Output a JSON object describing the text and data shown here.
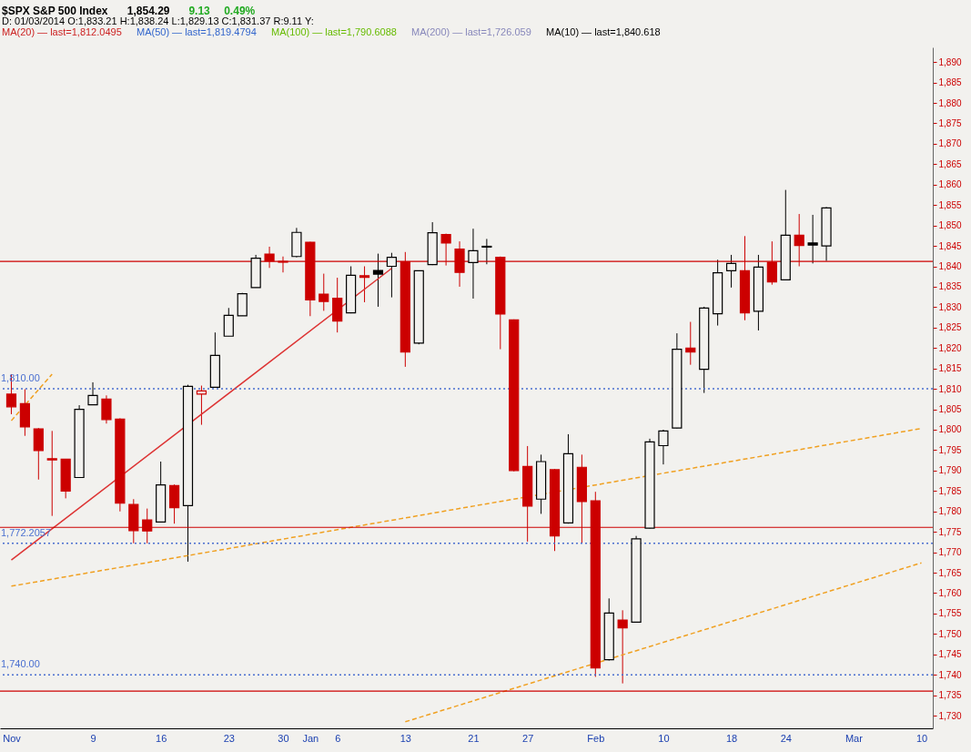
{
  "chart_data": {
    "type": "candlestick",
    "title": "$SPX S&P 500 Index",
    "subtitle": "D: 01/03/2014  O:1,833.21  H:1,838.24  L:1,829.13  C:1,831.37                        R:9.11     Y:",
    "annotations": [
      "1,854.29",
      "9.13",
      "0.49%",
      "MA(20) — last=1,812.0495",
      "MA(50) — last=1,819.4794",
      "MA(100) — last=1,790.6088",
      "MA(200) — last=1,726.059",
      "MA(10) — last=1,840.618"
    ],
    "categories": [
      "Nov",
      null,
      null,
      null,
      null,
      null,
      "9",
      null,
      null,
      null,
      null,
      "16",
      null,
      null,
      null,
      null,
      "23",
      null,
      null,
      null,
      "30",
      null,
      "Jan",
      null,
      "6",
      null,
      null,
      null,
      null,
      "13",
      null,
      null,
      null,
      null,
      "21",
      null,
      null,
      null,
      "27",
      null,
      null,
      null,
      null,
      "Feb",
      null,
      null,
      null,
      null,
      "10",
      null,
      null,
      null,
      null,
      "18",
      null,
      null,
      null,
      "24",
      null,
      null,
      null,
      null,
      "Mar",
      null,
      null,
      null,
      null,
      "10"
    ],
    "ohlc": [
      [
        1808.7,
        1813.6,
        1803.8,
        1805.6
      ],
      [
        1806.4,
        1809.9,
        1798.5,
        1800.7
      ],
      [
        1800.2,
        1800.4,
        1787.8,
        1794.9
      ],
      [
        1792.9,
        1799.7,
        1778.9,
        1792.6
      ],
      [
        1792.8,
        1792.8,
        1783.2,
        1785.0
      ],
      [
        1788.3,
        1806.0,
        1788.3,
        1805.0
      ],
      [
        1806.1,
        1811.6,
        1806.1,
        1808.4
      ],
      [
        1807.5,
        1808.4,
        1801.5,
        1802.5
      ],
      [
        1802.6,
        1802.8,
        1780.0,
        1782.0
      ],
      [
        1781.7,
        1783.0,
        1772.2,
        1775.3
      ],
      [
        1777.9,
        1780.7,
        1772.2,
        1775.2
      ],
      [
        1777.4,
        1792.2,
        1777.4,
        1786.5
      ],
      [
        1786.3,
        1786.6,
        1777.0,
        1780.9
      ],
      [
        1781.4,
        1811.0,
        1767.7,
        1810.6
      ],
      [
        1808.7,
        1810.8,
        1801.2,
        1809.5
      ],
      [
        1810.4,
        1823.8,
        1810.4,
        1818.2
      ],
      [
        1822.9,
        1829.8,
        1822.9,
        1828.0
      ],
      [
        1827.9,
        1833.5,
        1827.9,
        1833.3
      ],
      [
        1834.8,
        1842.8,
        1834.8,
        1842.0
      ],
      [
        1843.0,
        1844.8,
        1839.6,
        1841.3
      ],
      [
        1841.2,
        1842.4,
        1838.5,
        1841.0
      ],
      [
        1842.4,
        1849.4,
        1842.2,
        1848.3
      ],
      [
        1845.9,
        1846.0,
        1827.8,
        1831.8
      ],
      [
        1833.2,
        1838.2,
        1829.1,
        1831.4
      ],
      [
        1832.2,
        1837.2,
        1823.8,
        1826.6
      ],
      [
        1828.6,
        1840.0,
        1828.5,
        1837.8
      ],
      [
        1837.7,
        1840.0,
        1831.2,
        1837.3
      ],
      [
        1839.0,
        1843.1,
        1830.1,
        1838.1
      ],
      [
        1840.0,
        1843.3,
        1832.4,
        1842.2
      ],
      [
        1841.1,
        1843.5,
        1815.4,
        1819.0
      ],
      [
        1821.2,
        1839.0,
        1820.9,
        1838.9
      ],
      [
        1840.4,
        1850.8,
        1840.3,
        1848.2
      ],
      [
        1847.8,
        1848.0,
        1840.2,
        1845.7
      ],
      [
        1844.2,
        1846.1,
        1835.0,
        1838.5
      ],
      [
        1840.9,
        1849.2,
        1832.1,
        1843.8
      ],
      [
        1844.7,
        1846.7,
        1840.5,
        1844.9
      ],
      [
        1842.2,
        1842.4,
        1819.7,
        1828.3
      ],
      [
        1826.9,
        1827.0,
        1789.8,
        1790.0
      ],
      [
        1791.0,
        1796.0,
        1772.6,
        1781.3
      ],
      [
        1783.0,
        1793.9,
        1779.4,
        1792.2
      ],
      [
        1790.2,
        1790.4,
        1770.3,
        1774.0
      ],
      [
        1777.2,
        1798.9,
        1777.0,
        1794.1
      ],
      [
        1790.8,
        1793.9,
        1772.2,
        1782.4
      ],
      [
        1782.6,
        1784.8,
        1739.5,
        1741.7
      ],
      [
        1743.7,
        1758.7,
        1743.5,
        1755.1
      ],
      [
        1753.4,
        1755.8,
        1737.9,
        1751.5
      ],
      [
        1752.9,
        1774.0,
        1752.8,
        1773.3
      ],
      [
        1775.9,
        1797.8,
        1775.8,
        1797.0
      ],
      [
        1796.1,
        1800.0,
        1791.5,
        1799.7
      ],
      [
        1800.4,
        1823.6,
        1800.3,
        1819.7
      ],
      [
        1820.0,
        1826.4,
        1815.9,
        1819.0
      ],
      [
        1814.8,
        1830.1,
        1809.0,
        1829.8
      ],
      [
        1828.4,
        1841.6,
        1825.5,
        1838.4
      ],
      [
        1838.9,
        1842.8,
        1834.8,
        1840.7
      ],
      [
        1838.9,
        1847.4,
        1826.8,
        1828.6
      ],
      [
        1829.0,
        1842.8,
        1824.3,
        1839.8
      ],
      [
        1841.0,
        1846.1,
        1835.5,
        1836.2
      ],
      [
        1836.7,
        1858.7,
        1836.6,
        1847.6
      ],
      [
        1847.6,
        1852.8,
        1840.0,
        1845.1
      ],
      [
        1845.7,
        1852.6,
        1840.7,
        1845.2
      ],
      [
        1845.0,
        1854.5,
        1841.3,
        1854.3
      ],
      null,
      null,
      null,
      null,
      null,
      null,
      null
    ],
    "colors": [
      "#cc0000",
      "#cc0000",
      "#cc0000",
      "#cc0000",
      "#cc0000",
      "#000000",
      "#000000",
      "#cc0000",
      "#cc0000",
      "#cc0000",
      "#cc0000",
      "#000000",
      "#cc0000",
      "#000000",
      "#cc0000",
      "#000000",
      "#000000",
      "#000000",
      "#000000",
      "#cc0000",
      "#cc0000",
      "#000000",
      "#cc0000",
      "#cc0000",
      "#cc0000",
      "#000000",
      "#cc0000",
      "#000000",
      "#000000",
      "#cc0000",
      "#000000",
      "#000000",
      "#cc0000",
      "#cc0000",
      "#000000",
      "#000000",
      "#cc0000",
      "#cc0000",
      "#cc0000",
      "#000000",
      "#cc0000",
      "#000000",
      "#cc0000",
      "#cc0000",
      "#000000",
      "#cc0000",
      "#000000",
      "#000000",
      "#000000",
      "#000000",
      "#cc0000",
      "#000000",
      "#000000",
      "#000000",
      "#cc0000",
      "#000000",
      "#cc0000",
      "#000000",
      "#cc0000",
      "#000000",
      "#000000",
      null,
      null,
      null,
      null,
      null,
      null,
      null
    ],
    "series": [
      {
        "type": "line",
        "values": [
          1802.2,
          null,
          null,
          1813.6,
          null,
          null,
          null,
          null,
          null,
          null,
          null,
          null,
          null,
          null,
          null,
          null,
          null,
          null,
          null,
          null,
          null,
          null,
          null,
          null,
          null,
          null,
          null,
          null,
          null,
          null,
          null,
          null,
          null,
          null,
          null,
          null,
          null,
          null,
          null,
          null,
          null,
          null,
          null,
          null,
          null,
          null,
          null,
          null,
          null,
          null,
          null,
          null,
          null,
          null,
          null,
          null,
          null,
          null,
          null,
          null,
          null,
          null,
          null,
          null,
          null,
          null,
          null,
          null
        ],
        "color": "#f0a020",
        "line_style": "dashed"
      },
      {
        "type": "line",
        "values": [
          1761.7,
          null,
          null,
          null,
          null,
          null,
          null,
          null,
          null,
          null,
          null,
          null,
          null,
          null,
          null,
          null,
          null,
          null,
          null,
          null,
          null,
          null,
          null,
          null,
          null,
          null,
          null,
          null,
          null,
          null,
          null,
          null,
          null,
          null,
          null,
          null,
          null,
          null,
          null,
          null,
          null,
          null,
          null,
          null,
          null,
          null,
          null,
          null,
          null,
          null,
          null,
          null,
          null,
          null,
          null,
          null,
          null,
          null,
          null,
          null,
          null,
          null,
          null,
          null,
          null,
          null,
          null,
          1800.3
        ],
        "color": "#f0a020",
        "line_style": "dashed"
      },
      {
        "type": "line",
        "values": [
          null,
          null,
          null,
          null,
          null,
          null,
          null,
          null,
          null,
          null,
          null,
          null,
          null,
          null,
          null,
          null,
          null,
          null,
          null,
          null,
          null,
          null,
          null,
          null,
          null,
          null,
          null,
          null,
          null,
          1728.5,
          null,
          null,
          null,
          null,
          null,
          null,
          null,
          null,
          null,
          null,
          null,
          null,
          null,
          null,
          null,
          null,
          null,
          null,
          null,
          null,
          null,
          null,
          null,
          null,
          null,
          null,
          null,
          null,
          null,
          null,
          null,
          null,
          null,
          null,
          null,
          null,
          null,
          1767.4
        ],
        "color": "#f0a020",
        "line_style": "dashed"
      },
      {
        "type": "line",
        "values": [
          1768.1,
          null,
          null,
          null,
          null,
          null,
          null,
          null,
          null,
          null,
          null,
          null,
          null,
          null,
          null,
          null,
          null,
          null,
          null,
          null,
          null,
          null,
          null,
          null,
          null,
          null,
          null,
          null,
          1839.5,
          null,
          null,
          null,
          null,
          null,
          null,
          null,
          null,
          null,
          null,
          null,
          null,
          null,
          null,
          null,
          null,
          null,
          null,
          null,
          null,
          null,
          null,
          null,
          null,
          null,
          null,
          null,
          null,
          null,
          null,
          null,
          null,
          null,
          null,
          null,
          null,
          null,
          null,
          null
        ],
        "color": "#dd3333",
        "line_style": "solid"
      }
    ],
    "ref_lines": [
      {
        "axis": "y",
        "value": 1841.2,
        "color": "#cc0000",
        "line_style": "solid"
      },
      {
        "axis": "y",
        "value": 1810.0,
        "label": "1,810.00",
        "color": "#4a6fd0",
        "line_style": "dotted"
      },
      {
        "axis": "y",
        "value": 1776.1,
        "color": "#cc0000",
        "line_style": "solid"
      },
      {
        "axis": "y",
        "value": 1772.2057,
        "label": "1,772.2057",
        "color": "#4a6fd0",
        "line_style": "dotted"
      },
      {
        "axis": "y",
        "value": 1740.0,
        "label": "1,740.00",
        "color": "#4a6fd0",
        "line_style": "dotted"
      },
      {
        "axis": "y",
        "value": 1736.0,
        "color": "#cc0000",
        "line_style": "solid"
      }
    ],
    "ylim": [
      1726.9,
      1893.6
    ],
    "yticks": [
      {
        "value": 1730,
        "label": "1,730"
      },
      {
        "value": 1735,
        "label": "1,735"
      },
      {
        "value": 1740,
        "label": "1,740"
      },
      {
        "value": 1745,
        "label": "1,745"
      },
      {
        "value": 1750,
        "label": "1,750"
      },
      {
        "value": 1755,
        "label": "1,755"
      },
      {
        "value": 1760,
        "label": "1,760"
      },
      {
        "value": 1765,
        "label": "1,765"
      },
      {
        "value": 1770,
        "label": "1,770"
      },
      {
        "value": 1775,
        "label": "1,775"
      },
      {
        "value": 1780,
        "label": "1,780"
      },
      {
        "value": 1785,
        "label": "1,785"
      },
      {
        "value": 1790,
        "label": "1,790"
      },
      {
        "value": 1795,
        "label": "1,795"
      },
      {
        "value": 1800,
        "label": "1,800"
      },
      {
        "value": 1805,
        "label": "1,805"
      },
      {
        "value": 1810,
        "label": "1,810"
      },
      {
        "value": 1815,
        "label": "1,815"
      },
      {
        "value": 1820,
        "label": "1,820"
      },
      {
        "value": 1825,
        "label": "1,825"
      },
      {
        "value": 1830,
        "label": "1,830"
      },
      {
        "value": 1835,
        "label": "1,835"
      },
      {
        "value": 1840,
        "label": "1,840"
      },
      {
        "value": 1845,
        "label": "1,845"
      },
      {
        "value": 1850,
        "label": "1,850"
      },
      {
        "value": 1855,
        "label": "1,855"
      },
      {
        "value": 1860,
        "label": "1,860"
      },
      {
        "value": 1865,
        "label": "1,865"
      },
      {
        "value": 1870,
        "label": "1,870"
      },
      {
        "value": 1875,
        "label": "1,875"
      },
      {
        "value": 1880,
        "label": "1,880"
      },
      {
        "value": 1885,
        "label": "1,885"
      },
      {
        "value": 1890,
        "label": "1,890"
      }
    ]
  }
}
